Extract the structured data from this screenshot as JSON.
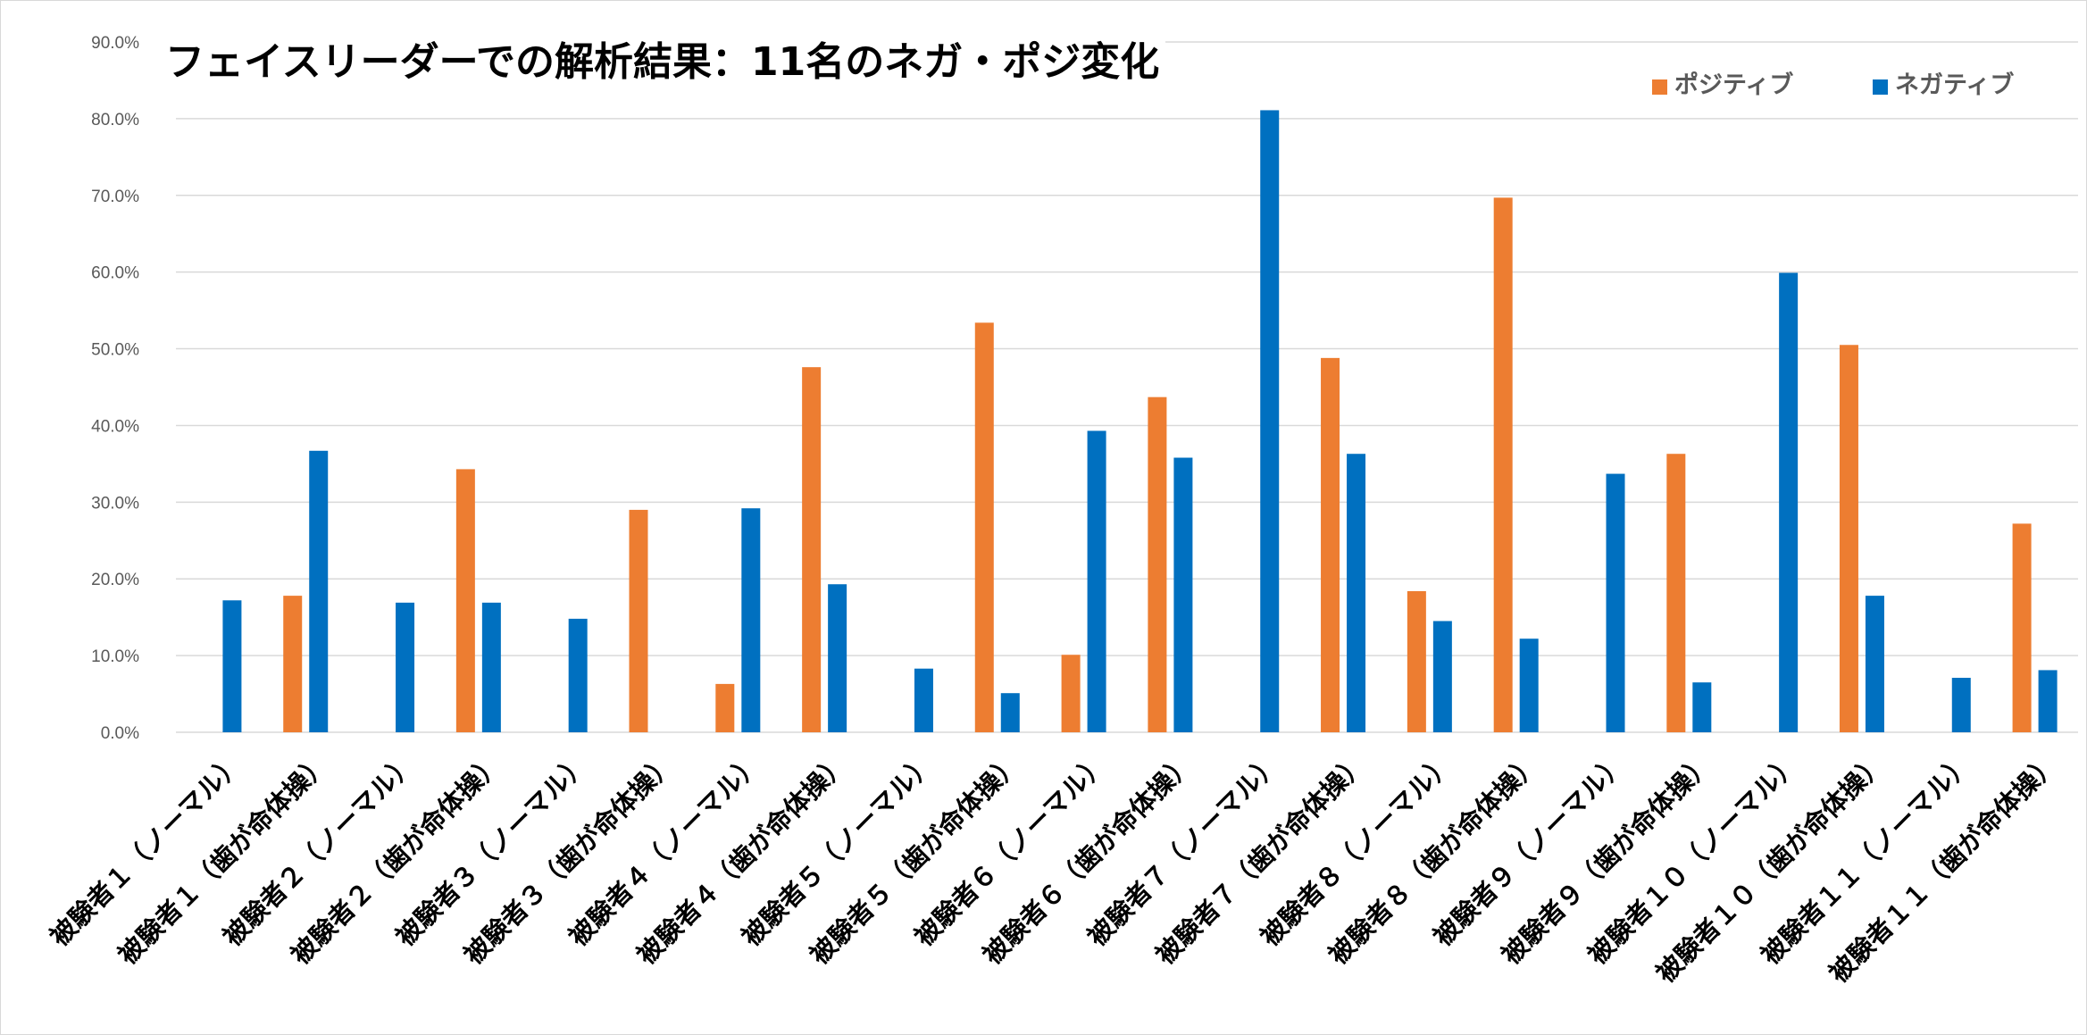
{
  "chart_data": {
    "type": "bar",
    "title": "フェイスリーダーでの解析結果：11名のネガ・ポジ変化",
    "xlabel": "",
    "ylabel": "",
    "ylim": [
      0,
      90
    ],
    "y_ticks": [
      0,
      10,
      20,
      30,
      40,
      50,
      60,
      70,
      80,
      90
    ],
    "y_tick_labels": [
      "0.0%",
      "10.0%",
      "20.0%",
      "30.0%",
      "40.0%",
      "50.0%",
      "60.0%",
      "70.0%",
      "80.0%",
      "90.0%"
    ],
    "grid": true,
    "legend_position": "top-right",
    "categories": [
      "被験者１（ノーマル）",
      "被験者１（歯が命体操）",
      "被験者２（ノーマル）",
      "被験者２（歯が命体操）",
      "被験者３（ノーマル）",
      "被験者３（歯が命体操）",
      "被験者４（ノーマル）",
      "被験者４（歯が命体操）",
      "被験者５（ノーマル）",
      "被験者５（歯が命体操）",
      "被験者６（ノーマル）",
      "被験者６（歯が命体操）",
      "被験者７（ノーマル）",
      "被験者７（歯が命体操）",
      "被験者８（ノーマル）",
      "被験者８（歯が命体操）",
      "被験者９（ノーマル）",
      "被験者９（歯が命体操）",
      "被験者１０（ノーマル）",
      "被験者１０（歯が命体操）",
      "被験者１１（ノーマル）",
      "被験者１１（歯が命体操）"
    ],
    "series": [
      {
        "name": "ポジティブ",
        "color": "#ED7D31",
        "values": [
          0,
          17.8,
          0,
          34.3,
          0,
          29.0,
          6.3,
          47.6,
          0,
          53.4,
          10.1,
          43.7,
          0,
          48.8,
          18.4,
          69.7,
          0,
          36.3,
          0,
          50.5,
          0,
          27.2
        ]
      },
      {
        "name": "ネガティブ",
        "color": "#0070C0",
        "values": [
          17.2,
          36.7,
          16.9,
          16.9,
          14.8,
          0,
          29.2,
          19.3,
          8.3,
          5.1,
          39.3,
          35.8,
          81.1,
          36.3,
          14.5,
          12.2,
          33.7,
          6.5,
          59.9,
          17.8,
          7.1,
          8.1
        ]
      }
    ]
  }
}
